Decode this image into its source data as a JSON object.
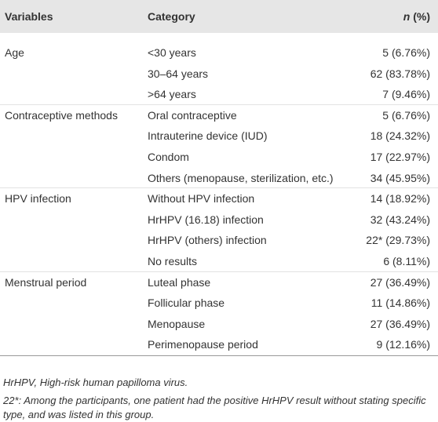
{
  "table": {
    "header": {
      "variables": "Variables",
      "category": "Category",
      "n_symbol": "n",
      "n_unit": " (%)"
    },
    "groups": [
      {
        "variable": "Age",
        "rows": [
          {
            "category": "<30 years",
            "n": "5 (6.76%)"
          },
          {
            "category": "30–64 years",
            "n": "62 (83.78%)"
          },
          {
            "category": ">64 years",
            "n": "7 (9.46%)"
          }
        ]
      },
      {
        "variable": "Contraceptive methods",
        "rows": [
          {
            "category": "Oral contraceptive",
            "n": "5 (6.76%)"
          },
          {
            "category": "Intrauterine device (IUD)",
            "n": "18 (24.32%)"
          },
          {
            "category": "Condom",
            "n": "17 (22.97%)"
          },
          {
            "category": "Others (menopause, sterilization, etc.)",
            "n": "34 (45.95%)"
          }
        ]
      },
      {
        "variable": "HPV infection",
        "rows": [
          {
            "category": "Without HPV infection",
            "n": "14 (18.92%)"
          },
          {
            "category": "HrHPV (16.18) infection",
            "n": "32 (43.24%)"
          },
          {
            "category": "HrHPV (others) infection",
            "n": "22* (29.73%)"
          },
          {
            "category": "No results",
            "n": "6 (8.11%)"
          }
        ]
      },
      {
        "variable": "Menstrual period",
        "rows": [
          {
            "category": "Luteal phase",
            "n": "27 (36.49%)"
          },
          {
            "category": "Follicular phase",
            "n": "11 (14.86%)"
          },
          {
            "category": "Menopause",
            "n": "27 (36.49%)"
          },
          {
            "category": "Perimenopause period",
            "n": "9 (12.16%)"
          }
        ]
      }
    ],
    "notes": [
      "HrHPV, High-risk human papilloma virus.",
      "22*: Among the participants, one patient had the positive HrHPV result without stating specific type, and was listed in this group."
    ]
  }
}
